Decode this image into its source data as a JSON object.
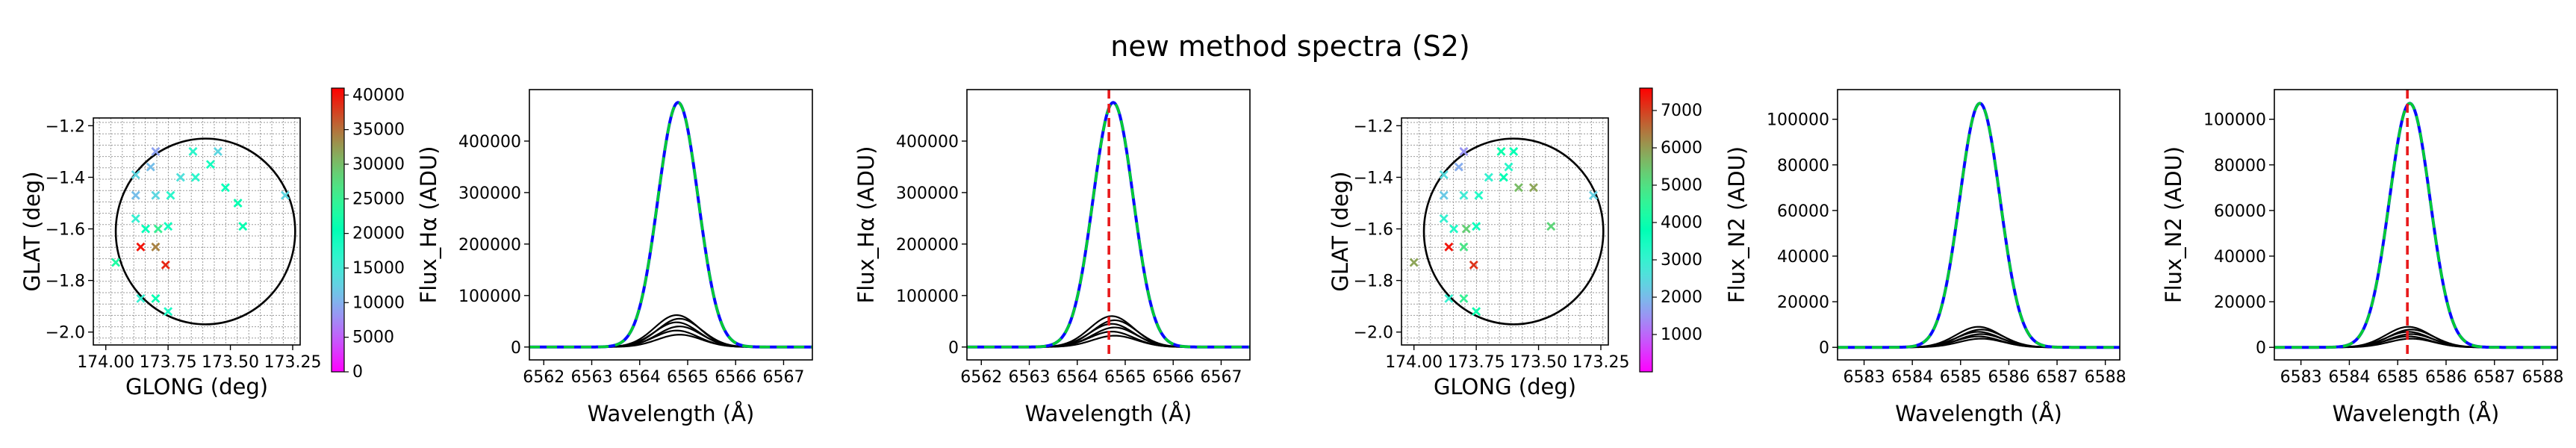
{
  "suptitle": "new method spectra (S2)",
  "colormap": "rainbow",
  "colors": {
    "curve": "#000000",
    "fit_green": "#00cc33",
    "fit_blue": "#0a0aff",
    "marker_line": "#e8191b",
    "circle": "#000000",
    "grid": "#9a9a9a"
  },
  "chart_data": [
    {
      "type": "scatter",
      "xlabel": "GLONG (deg)",
      "ylabel": "GLAT (deg)",
      "xlim": [
        174.05,
        173.22
      ],
      "ylim": [
        -2.05,
        -1.17
      ],
      "xticks": [
        174.0,
        173.75,
        173.5,
        173.25
      ],
      "xtick_labels": [
        "174.00",
        "173.75",
        "173.50",
        "173.25"
      ],
      "yticks": [
        -1.2,
        -1.4,
        -1.6,
        -1.8,
        -2.0
      ],
      "ytick_labels": [
        "−1.2",
        "−1.4",
        "−1.6",
        "−1.8",
        "−2.0"
      ],
      "circle": {
        "center": [
          173.6,
          -1.61
        ],
        "radius": 0.36
      },
      "colorbar": {
        "min": 0,
        "max": 41000,
        "ticks": [
          0,
          5000,
          10000,
          15000,
          20000,
          25000,
          30000,
          35000,
          40000
        ]
      },
      "points": [
        {
          "x": 173.8,
          "y": -1.3,
          "c": 9000
        },
        {
          "x": 173.65,
          "y": -1.3,
          "c": 17000
        },
        {
          "x": 173.55,
          "y": -1.3,
          "c": 13000
        },
        {
          "x": 173.82,
          "y": -1.36,
          "c": 11000
        },
        {
          "x": 173.88,
          "y": -1.39,
          "c": 13000
        },
        {
          "x": 173.7,
          "y": -1.4,
          "c": 14000
        },
        {
          "x": 173.64,
          "y": -1.4,
          "c": 17000
        },
        {
          "x": 173.58,
          "y": -1.35,
          "c": 19000
        },
        {
          "x": 173.88,
          "y": -1.47,
          "c": 11000
        },
        {
          "x": 173.8,
          "y": -1.47,
          "c": 13000
        },
        {
          "x": 173.74,
          "y": -1.47,
          "c": 17000
        },
        {
          "x": 173.52,
          "y": -1.44,
          "c": 20000
        },
        {
          "x": 173.47,
          "y": -1.5,
          "c": 21000
        },
        {
          "x": 173.28,
          "y": -1.47,
          "c": 13000
        },
        {
          "x": 173.88,
          "y": -1.56,
          "c": 16000
        },
        {
          "x": 173.84,
          "y": -1.6,
          "c": 20000
        },
        {
          "x": 173.79,
          "y": -1.6,
          "c": 25000
        },
        {
          "x": 173.75,
          "y": -1.59,
          "c": 19000
        },
        {
          "x": 173.45,
          "y": -1.59,
          "c": 21000
        },
        {
          "x": 173.86,
          "y": -1.67,
          "c": 40000
        },
        {
          "x": 173.8,
          "y": -1.67,
          "c": 34000
        },
        {
          "x": 173.96,
          "y": -1.73,
          "c": 23000
        },
        {
          "x": 173.76,
          "y": -1.74,
          "c": 39000
        },
        {
          "x": 173.86,
          "y": -1.87,
          "c": 16000
        },
        {
          "x": 173.8,
          "y": -1.87,
          "c": 21000
        },
        {
          "x": 173.75,
          "y": -1.92,
          "c": 18000
        }
      ]
    },
    {
      "type": "line",
      "xlabel": "Wavelength (Å)",
      "ylabel": "Flux_Hα (ADU)",
      "xlim": [
        6561.7,
        6567.6
      ],
      "ylim": [
        -25000,
        500000
      ],
      "xticks": [
        6562,
        6563,
        6564,
        6565,
        6566,
        6567
      ],
      "yticks": [
        0,
        100000,
        200000,
        300000,
        400000
      ],
      "peak_center": 6564.8,
      "peak_sigma": 0.42,
      "fit_amplitude": 475000,
      "component_amplitudes": [
        62000,
        55000,
        48000,
        40000,
        32000,
        24000
      ],
      "marker_x": null
    },
    {
      "type": "line",
      "xlabel": "Wavelength (Å)",
      "ylabel": "Flux_Hα (ADU)",
      "xlim": [
        6561.7,
        6567.6
      ],
      "ylim": [
        -25000,
        500000
      ],
      "xticks": [
        6562,
        6563,
        6564,
        6565,
        6566,
        6567
      ],
      "yticks": [
        0,
        100000,
        200000,
        300000,
        400000
      ],
      "peak_center": 6564.75,
      "peak_sigma": 0.42,
      "fit_amplitude": 475000,
      "component_amplitudes": [
        60000,
        52000,
        45000,
        38000,
        30000,
        22000
      ],
      "marker_x": 6564.66
    },
    {
      "type": "scatter",
      "xlabel": "GLONG (deg)",
      "ylabel": "GLAT (deg)",
      "xlim": [
        174.05,
        173.22
      ],
      "ylim": [
        -2.05,
        -1.17
      ],
      "xticks": [
        174.0,
        173.75,
        173.5,
        173.25
      ],
      "xtick_labels": [
        "174.00",
        "173.75",
        "173.50",
        "173.25"
      ],
      "yticks": [
        -1.2,
        -1.4,
        -1.6,
        -1.8,
        -2.0
      ],
      "ytick_labels": [
        "−1.2",
        "−1.4",
        "−1.6",
        "−1.8",
        "−2.0"
      ],
      "circle": {
        "center": [
          173.6,
          -1.61
        ],
        "radius": 0.36
      },
      "colorbar": {
        "min": 0,
        "max": 7600,
        "ticks": [
          1000,
          2000,
          3000,
          4000,
          5000,
          6000,
          7000
        ]
      },
      "points": [
        {
          "x": 173.8,
          "y": -1.3,
          "c": 1500
        },
        {
          "x": 173.65,
          "y": -1.3,
          "c": 4000
        },
        {
          "x": 173.6,
          "y": -1.3,
          "c": 3800
        },
        {
          "x": 173.82,
          "y": -1.36,
          "c": 1800
        },
        {
          "x": 173.88,
          "y": -1.39,
          "c": 2500
        },
        {
          "x": 173.7,
          "y": -1.4,
          "c": 3000
        },
        {
          "x": 173.64,
          "y": -1.4,
          "c": 3800
        },
        {
          "x": 173.62,
          "y": -1.36,
          "c": 3200
        },
        {
          "x": 173.88,
          "y": -1.47,
          "c": 2200
        },
        {
          "x": 173.8,
          "y": -1.47,
          "c": 2800
        },
        {
          "x": 173.74,
          "y": -1.47,
          "c": 3300
        },
        {
          "x": 173.58,
          "y": -1.44,
          "c": 5600
        },
        {
          "x": 173.52,
          "y": -1.44,
          "c": 5900
        },
        {
          "x": 173.28,
          "y": -1.47,
          "c": 2300
        },
        {
          "x": 173.88,
          "y": -1.56,
          "c": 3000
        },
        {
          "x": 173.84,
          "y": -1.6,
          "c": 3300
        },
        {
          "x": 173.79,
          "y": -1.6,
          "c": 5300
        },
        {
          "x": 173.75,
          "y": -1.59,
          "c": 3600
        },
        {
          "x": 173.45,
          "y": -1.59,
          "c": 5200
        },
        {
          "x": 173.86,
          "y": -1.67,
          "c": 7400
        },
        {
          "x": 173.8,
          "y": -1.67,
          "c": 4900
        },
        {
          "x": 174.0,
          "y": -1.73,
          "c": 5900
        },
        {
          "x": 173.76,
          "y": -1.74,
          "c": 7100
        },
        {
          "x": 173.86,
          "y": -1.87,
          "c": 3000
        },
        {
          "x": 173.8,
          "y": -1.87,
          "c": 4600
        },
        {
          "x": 173.75,
          "y": -1.92,
          "c": 4000
        }
      ]
    },
    {
      "type": "line",
      "xlabel": "Wavelength (Å)",
      "ylabel": "Flux_N2 (ADU)",
      "xlim": [
        6582.45,
        6588.3
      ],
      "ylim": [
        -5500,
        113000
      ],
      "xticks": [
        6583,
        6584,
        6585,
        6586,
        6587,
        6588
      ],
      "yticks": [
        0,
        20000,
        40000,
        60000,
        80000,
        100000
      ],
      "peak_center": 6585.4,
      "peak_sigma": 0.42,
      "fit_amplitude": 107000,
      "component_amplitudes": [
        9000,
        7800,
        6800,
        5800,
        4800,
        3800
      ],
      "marker_x": null
    },
    {
      "type": "line",
      "xlabel": "Wavelength (Å)",
      "ylabel": "Flux_N2 (ADU)",
      "xlim": [
        6582.45,
        6588.3
      ],
      "ylim": [
        -5500,
        113000
      ],
      "xticks": [
        6583,
        6584,
        6585,
        6586,
        6587,
        6588
      ],
      "yticks": [
        0,
        20000,
        40000,
        60000,
        80000,
        100000
      ],
      "peak_center": 6585.25,
      "peak_sigma": 0.42,
      "fit_amplitude": 107000,
      "component_amplitudes": [
        9000,
        7800,
        6800,
        5800,
        4800,
        3800
      ],
      "marker_x": 6585.2
    }
  ]
}
